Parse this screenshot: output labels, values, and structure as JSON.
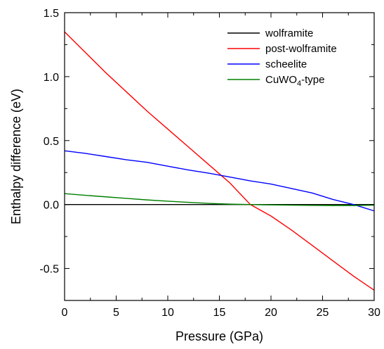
{
  "chart_data": {
    "type": "line",
    "xlabel": "Pressure (GPa)",
    "ylabel": "Enthalpy difference (eV)",
    "xlim": [
      0,
      30
    ],
    "ylim": [
      -0.75,
      1.5
    ],
    "x_ticks": [
      0,
      5,
      10,
      15,
      20,
      25,
      30
    ],
    "y_ticks": [
      -0.5,
      0.0,
      0.5,
      1.0,
      1.5
    ],
    "y_tick_labels": [
      "-0.5",
      "0.0",
      "0.5",
      "1.0",
      "1.5"
    ],
    "legend_position": "top-right",
    "grid": false,
    "series": [
      {
        "name": "wolframite",
        "color": "#000000",
        "x": [
          0,
          30
        ],
        "y": [
          0.0,
          0.0
        ]
      },
      {
        "name": "post-wolframite",
        "color": "#ff0000",
        "x": [
          0,
          2,
          4,
          6,
          8,
          10,
          12,
          14,
          16,
          18,
          20,
          22,
          24,
          26,
          28,
          30
        ],
        "y": [
          1.35,
          1.19,
          1.03,
          0.88,
          0.73,
          0.59,
          0.45,
          0.31,
          0.17,
          0.0,
          -0.09,
          -0.2,
          -0.32,
          -0.44,
          -0.56,
          -0.67
        ]
      },
      {
        "name": "scheelite",
        "name_main": "scheelite",
        "color": "#0000ff",
        "x": [
          0,
          2,
          4,
          6,
          8,
          10,
          12,
          14,
          16,
          18,
          20,
          22,
          24,
          26,
          28,
          30
        ],
        "y": [
          0.42,
          0.4,
          0.375,
          0.35,
          0.33,
          0.3,
          0.27,
          0.245,
          0.215,
          0.185,
          0.16,
          0.125,
          0.09,
          0.04,
          0.0,
          -0.05
        ]
      },
      {
        "name": "CuWO4-type",
        "name_main": "CuWO",
        "name_sub": "4",
        "name_suffix": "-type",
        "color": "#008000",
        "x": [
          0,
          2,
          4,
          6,
          8,
          10,
          12,
          14,
          16,
          18,
          20,
          22,
          24,
          26,
          28,
          30
        ],
        "y": [
          0.085,
          0.072,
          0.06,
          0.048,
          0.036,
          0.026,
          0.017,
          0.009,
          0.003,
          0.0,
          -0.003,
          -0.005,
          -0.007,
          -0.008,
          -0.008,
          -0.005
        ]
      }
    ]
  }
}
